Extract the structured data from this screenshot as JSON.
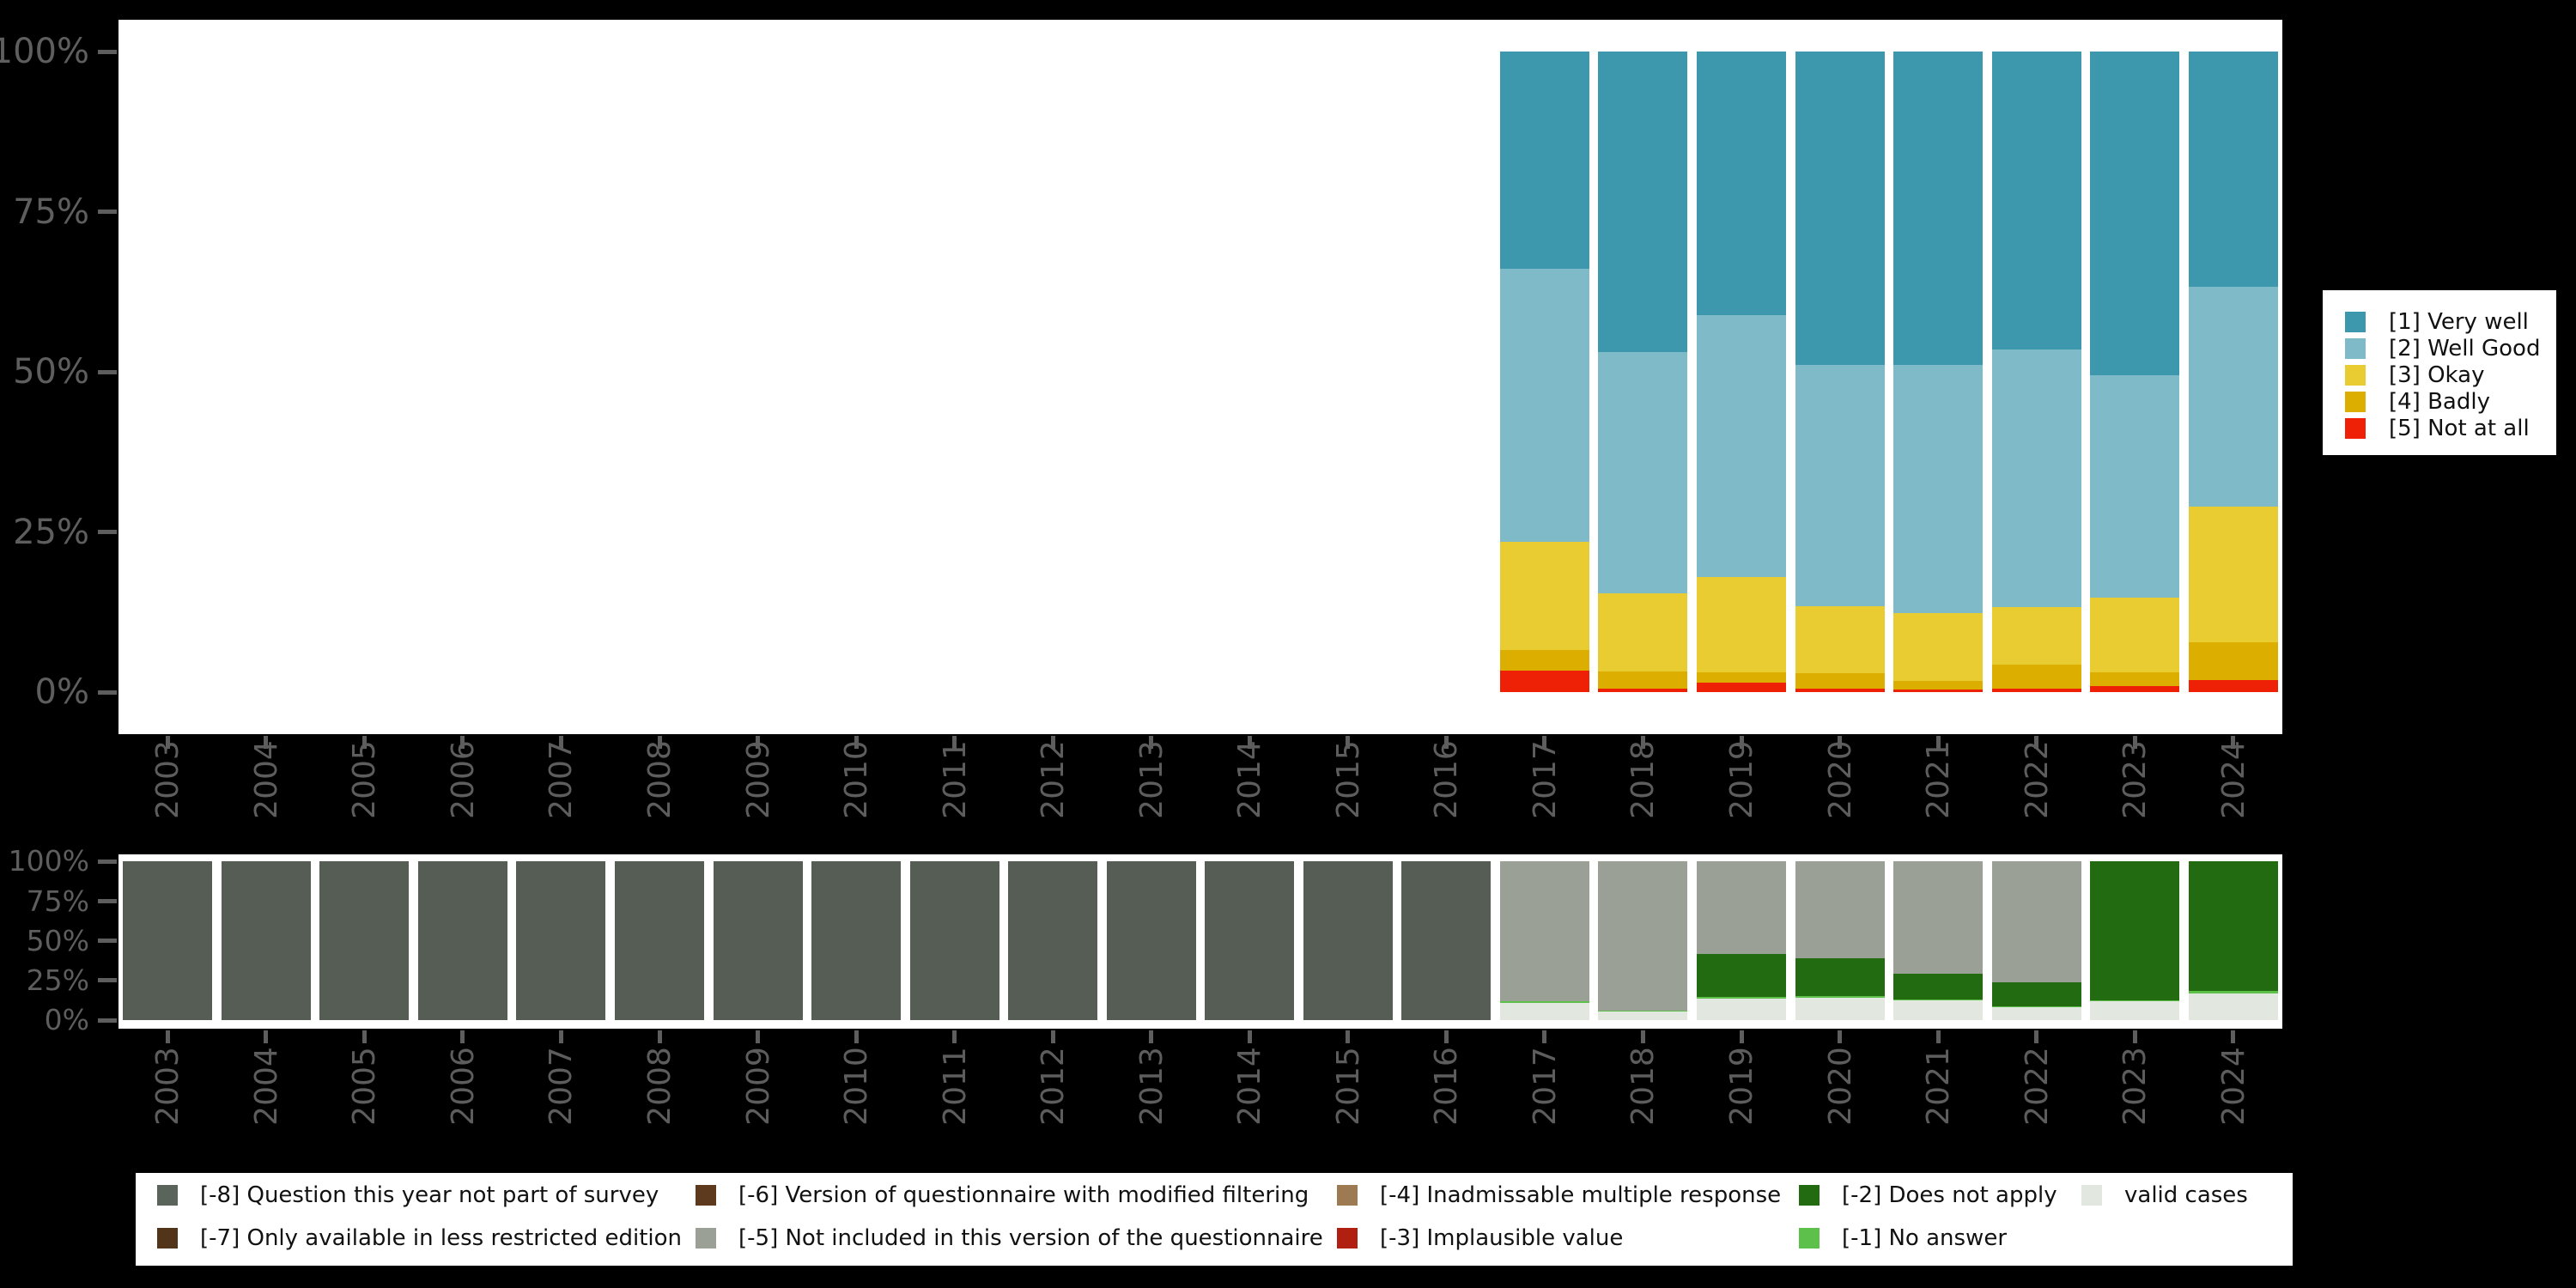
{
  "page": {
    "background": "#000000",
    "panel_background": "#ffffff"
  },
  "axis": {
    "ytick_labels": [
      "0%",
      "25%",
      "50%",
      "75%",
      "100%"
    ],
    "tick_color": "#5e5e5e",
    "label_color": "#5d5d5d"
  },
  "chart_data": [
    {
      "id": "answers",
      "type": "bar",
      "stacked": true,
      "title": "",
      "xlabel": "",
      "ylabel": "",
      "ylim": [
        0,
        100
      ],
      "grid": false,
      "legend_position": "right",
      "categories": [
        "2003",
        "2004",
        "2005",
        "2006",
        "2007",
        "2008",
        "2009",
        "2010",
        "2011",
        "2012",
        "2013",
        "2014",
        "2015",
        "2016",
        "2017",
        "2018",
        "2019",
        "2020",
        "2021",
        "2022",
        "2023",
        "2024"
      ],
      "series": [
        {
          "name": "[1] Very well",
          "color": "#3d98ad",
          "values": [
            null,
            null,
            null,
            null,
            null,
            null,
            null,
            null,
            null,
            null,
            null,
            null,
            null,
            null,
            33.9,
            46.9,
            41.2,
            48.9,
            48.9,
            46.5,
            50.5,
            36.7
          ]
        },
        {
          "name": "[2] Well Good",
          "color": "#7fbac8",
          "values": [
            null,
            null,
            null,
            null,
            null,
            null,
            null,
            null,
            null,
            null,
            null,
            null,
            null,
            null,
            42.6,
            37.7,
            40.8,
            37.7,
            38.8,
            40.2,
            34.8,
            34.3
          ]
        },
        {
          "name": "[3] Okay",
          "color": "#e9cc31",
          "values": [
            null,
            null,
            null,
            null,
            null,
            null,
            null,
            null,
            null,
            null,
            null,
            null,
            null,
            null,
            16.9,
            12.2,
            14.9,
            10.5,
            10.6,
            9.0,
            11.6,
            21.2
          ]
        },
        {
          "name": "[4] Badly",
          "color": "#dcae00",
          "values": [
            null,
            null,
            null,
            null,
            null,
            null,
            null,
            null,
            null,
            null,
            null,
            null,
            null,
            null,
            3.2,
            2.6,
            1.6,
            2.3,
            1.3,
            3.8,
            2.2,
            5.9
          ]
        },
        {
          "name": "[5] Not at all",
          "color": "#ee2005",
          "values": [
            null,
            null,
            null,
            null,
            null,
            null,
            null,
            null,
            null,
            null,
            null,
            null,
            null,
            null,
            3.4,
            0.6,
            1.5,
            0.6,
            0.4,
            0.5,
            0.9,
            1.9
          ]
        }
      ]
    },
    {
      "id": "missing",
      "type": "bar",
      "stacked": true,
      "title": "",
      "xlabel": "",
      "ylabel": "",
      "ylim": [
        0,
        100
      ],
      "grid": false,
      "legend_position": "bottom",
      "categories": [
        "2003",
        "2004",
        "2005",
        "2006",
        "2007",
        "2008",
        "2009",
        "2010",
        "2011",
        "2012",
        "2013",
        "2014",
        "2015",
        "2016",
        "2017",
        "2018",
        "2019",
        "2020",
        "2021",
        "2022",
        "2023",
        "2024"
      ],
      "series": [
        {
          "name": "[-8] Question this year not part of survey",
          "color": "#555d55",
          "values": [
            100,
            100,
            100,
            100,
            100,
            100,
            100,
            100,
            100,
            100,
            100,
            100,
            100,
            100,
            0,
            0,
            0,
            0,
            0,
            0,
            0,
            0
          ]
        },
        {
          "name": "[-5] Not included in this version of the questionnaire",
          "color": "#9aa096",
          "values": [
            0,
            0,
            0,
            0,
            0,
            0,
            0,
            0,
            0,
            0,
            0,
            0,
            0,
            0,
            88.1,
            93.8,
            58.4,
            61.1,
            70.8,
            76.2,
            0,
            0
          ]
        },
        {
          "name": "[-2] Does not apply",
          "color": "#226b11",
          "values": [
            0,
            0,
            0,
            0,
            0,
            0,
            0,
            0,
            0,
            0,
            0,
            0,
            0,
            0,
            0,
            0,
            27.0,
            23.8,
            16.2,
            15.2,
            87.6,
            81.6
          ]
        },
        {
          "name": "[-1] No answer",
          "color": "#5cc04b",
          "values": [
            0,
            0,
            0,
            0,
            0,
            0,
            0,
            0,
            0,
            0,
            0,
            0,
            0,
            0,
            1.1,
            0.3,
            1.1,
            0.8,
            0.5,
            0.4,
            0.5,
            1.6
          ]
        },
        {
          "name": "valid cases",
          "color": "#e2e7e0",
          "values": [
            0,
            0,
            0,
            0,
            0,
            0,
            0,
            0,
            0,
            0,
            0,
            0,
            0,
            0,
            10.8,
            5.9,
            13.5,
            14.3,
            12.5,
            8.2,
            11.9,
            16.8
          ]
        }
      ]
    }
  ],
  "legend_top": {
    "items": [
      {
        "label": "[1] Very well",
        "color": "#3d98ad"
      },
      {
        "label": "[2] Well Good",
        "color": "#7fbac8"
      },
      {
        "label": "[3] Okay",
        "color": "#e9cc31"
      },
      {
        "label": "[4] Badly",
        "color": "#dcae00"
      },
      {
        "label": "[5] Not at all",
        "color": "#ee2005"
      }
    ]
  },
  "legend_bottom": {
    "items": [
      {
        "label": "[-8] Question this year not part of survey",
        "color": "#5a645a",
        "col": 0,
        "row": 0
      },
      {
        "label": "[-7] Only available in less restricted edition",
        "color": "#523419",
        "col": 0,
        "row": 1
      },
      {
        "label": "[-6] Version of questionnaire with modified filtering",
        "color": "#5d3a1e",
        "col": 1,
        "row": 0
      },
      {
        "label": "[-5] Not included in this version of the questionnaire",
        "color": "#9aa096",
        "col": 1,
        "row": 1
      },
      {
        "label": "[-4] Inadmissable multiple response",
        "color": "#9d7a52",
        "col": 2,
        "row": 0
      },
      {
        "label": "[-3] Implausible value",
        "color": "#b01f10",
        "col": 2,
        "row": 1
      },
      {
        "label": "[-2] Does not apply",
        "color": "#226b11",
        "col": 3,
        "row": 0
      },
      {
        "label": "[-1] No answer",
        "color": "#5cc04b",
        "col": 3,
        "row": 1
      },
      {
        "label": "valid cases",
        "color": "#e2e7e0",
        "col": 4,
        "row": 0
      }
    ]
  }
}
